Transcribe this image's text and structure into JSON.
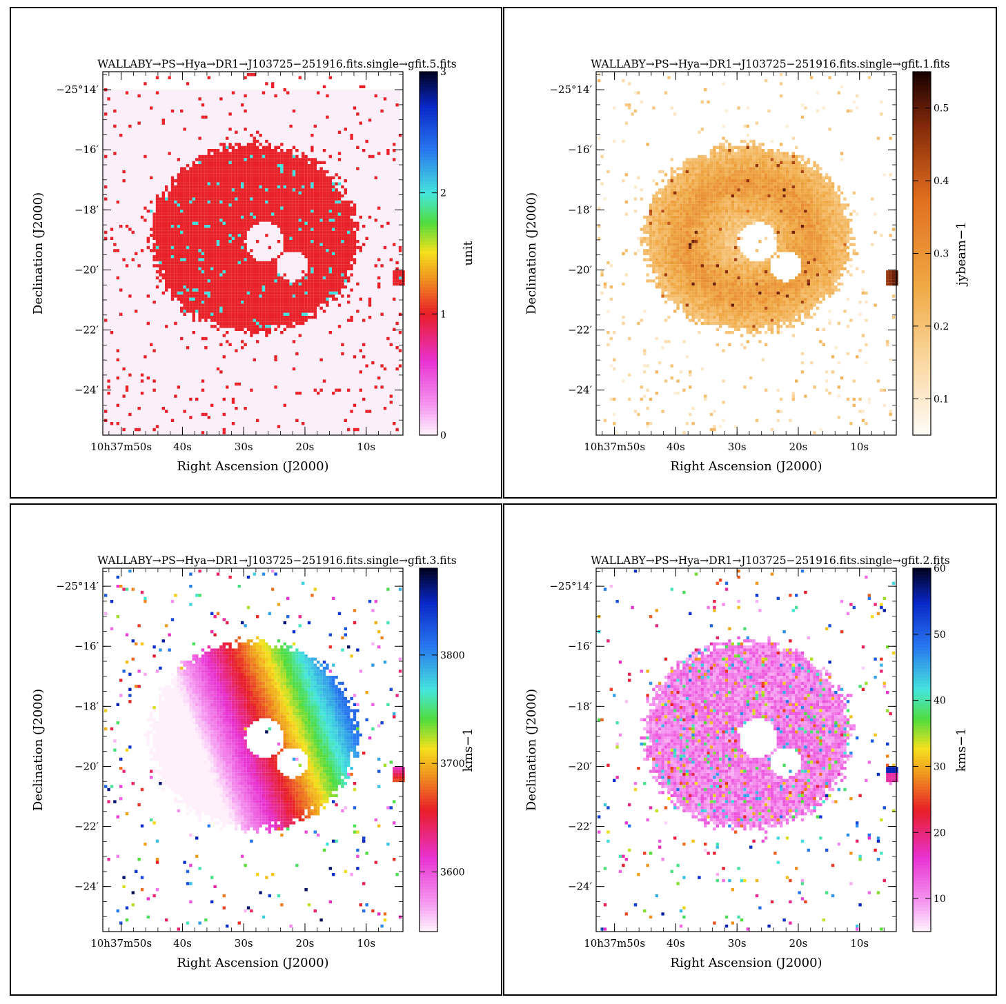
{
  "panels": [
    {
      "title": "WALLABY→PS→Hya→DR1→J103725−251916.fits.single→gfit.5.fits",
      "xlabel": "Right Ascension (J2000)",
      "ylabel": "Declination (J2000)",
      "colorbar": {
        "label": "unit",
        "colormap": "rainbow",
        "ticks": [
          {
            "value": 0,
            "label": "0"
          },
          {
            "value": 1,
            "label": "1"
          },
          {
            "value": 2,
            "label": "2"
          },
          {
            "value": 3,
            "label": "3"
          }
        ],
        "range": [
          0,
          3
        ]
      },
      "map_kind": "mask",
      "background": "#fbf0fa"
    },
    {
      "title": "WALLABY→PS→Hya→DR1→J103725−251916.fits.single→gfit.1.fits",
      "xlabel": "Right Ascension (J2000)",
      "ylabel": "Declination (J2000)",
      "colorbar": {
        "label": "jybeam−1",
        "colormap": "heat",
        "ticks": [
          {
            "value": 0.1,
            "label": "0.1"
          },
          {
            "value": 0.2,
            "label": "0.2"
          },
          {
            "value": 0.3,
            "label": "0.3"
          },
          {
            "value": 0.4,
            "label": "0.4"
          },
          {
            "value": 0.5,
            "label": "0.5"
          }
        ],
        "range": [
          0.05,
          0.55
        ]
      },
      "map_kind": "flux",
      "background": "#ffffff"
    },
    {
      "title": "WALLABY→PS→Hya→DR1→J103725−251916.fits.single→gfit.3.fits",
      "xlabel": "Right Ascension (J2000)",
      "ylabel": "Declination (J2000)",
      "colorbar": {
        "label": "kms−1",
        "colormap": "rainbow",
        "ticks": [
          {
            "value": 3600,
            "label": "3600"
          },
          {
            "value": 3700,
            "label": "3700"
          },
          {
            "value": 3800,
            "label": "3800"
          }
        ],
        "range": [
          3545,
          3880
        ]
      },
      "map_kind": "velocity",
      "background": "#ffffff"
    },
    {
      "title": "WALLABY→PS→Hya→DR1→J103725−251916.fits.single→gfit.2.fits",
      "xlabel": "Right Ascension (J2000)",
      "ylabel": "Declination (J2000)",
      "colorbar": {
        "label": "kms−1",
        "colormap": "rainbow",
        "ticks": [
          {
            "value": 10,
            "label": "10"
          },
          {
            "value": 20,
            "label": "20"
          },
          {
            "value": 30,
            "label": "30"
          },
          {
            "value": 40,
            "label": "40"
          },
          {
            "value": 50,
            "label": "50"
          },
          {
            "value": 60,
            "label": "60"
          }
        ],
        "range": [
          5,
          60
        ]
      },
      "map_kind": "dispersion",
      "background": "#ffffff"
    }
  ],
  "axes": {
    "x_ticks": [
      {
        "sec": 50,
        "label": "10h37m50s"
      },
      {
        "sec": 40,
        "label": "40s"
      },
      {
        "sec": 30,
        "label": "30s"
      },
      {
        "sec": 20,
        "label": "20s"
      },
      {
        "sec": 10,
        "label": "10s"
      }
    ],
    "y_ticks": [
      {
        "arcmin": -14,
        "label": "−25°14′"
      },
      {
        "arcmin": -16,
        "label": "−16′"
      },
      {
        "arcmin": -18,
        "label": "−18′"
      },
      {
        "arcmin": -20,
        "label": "−20′"
      },
      {
        "arcmin": -22,
        "label": "−22′"
      },
      {
        "arcmin": -24,
        "label": "−24′"
      }
    ],
    "x_range_sec": [
      53,
      4
    ],
    "y_range_arcmin": [
      -13.4,
      -25.5
    ]
  },
  "chart_data": [
    {
      "type": "heatmap",
      "title": "WALLABY→PS→Hya→DR1→J103725−251916.fits.single→gfit.5.fits",
      "xlabel": "Right Ascension (J2000)",
      "ylabel": "Declination (J2000)",
      "colorbar_label": "unit",
      "colorbar_range": [
        0,
        3
      ],
      "description_values": {
        "ring_value": 1,
        "scattered_pixels": 2
      }
    },
    {
      "type": "heatmap",
      "title": "WALLABY→PS→Hya→DR1→J103725−251916.fits.single→gfit.1.fits",
      "xlabel": "Right Ascension (J2000)",
      "ylabel": "Declination (J2000)",
      "colorbar_label": "jybeam−1",
      "colorbar_range": [
        0.05,
        0.55
      ]
    },
    {
      "type": "heatmap",
      "title": "WALLABY→PS→Hya→DR1→J103725−251916.fits.single→gfit.3.fits",
      "xlabel": "Right Ascension (J2000)",
      "ylabel": "Declination (J2000)",
      "colorbar_label": "kms−1",
      "colorbar_range": [
        3545,
        3880
      ]
    },
    {
      "type": "heatmap",
      "title": "WALLABY→PS→Hya→DR1→J103725−251916.fits.single→gfit.2.fits",
      "xlabel": "Right Ascension (J2000)",
      "ylabel": "Declination (J2000)",
      "colorbar_label": "kms−1",
      "colorbar_range": [
        5,
        60
      ]
    }
  ]
}
